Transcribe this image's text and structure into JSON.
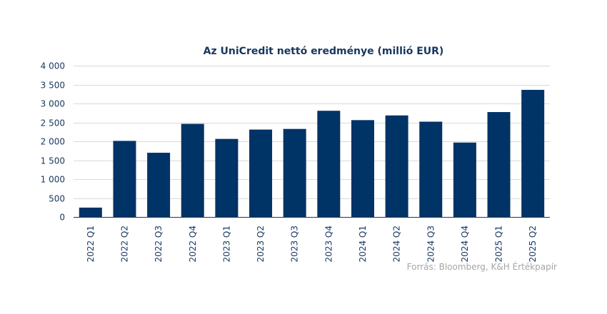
{
  "chart_data": {
    "type": "bar",
    "title": "Az UniCredit nettó eredménye (millió EUR)",
    "xlabel": "",
    "ylabel": "",
    "categories": [
      "2022 Q1",
      "2022 Q2",
      "2022 Q3",
      "2022 Q4",
      "2023 Q1",
      "2023 Q2",
      "2023 Q3",
      "2023 Q4",
      "2024 Q1",
      "2024 Q2",
      "2024 Q3",
      "2024 Q4",
      "2025 Q1",
      "2025 Q2"
    ],
    "values": [
      247,
      2011,
      1697,
      2461,
      2063,
      2310,
      2327,
      2807,
      2560,
      2684,
      2519,
      1967,
      2773,
      3360
    ],
    "ylim": [
      0,
      4000
    ],
    "yticks": [
      0,
      500,
      1000,
      1500,
      2000,
      2500,
      3000,
      3500,
      4000
    ],
    "ytick_labels": [
      "0",
      "500",
      "1 000",
      "1 500",
      "2 000",
      "2 500",
      "3 000",
      "3 500",
      "4 000"
    ],
    "grid": true,
    "bar_color": "#003366",
    "text_color": "#17375e",
    "grid_color": "#d9d9d9",
    "source": "Forrás: Bloomberg, K&H Értékpapír"
  }
}
